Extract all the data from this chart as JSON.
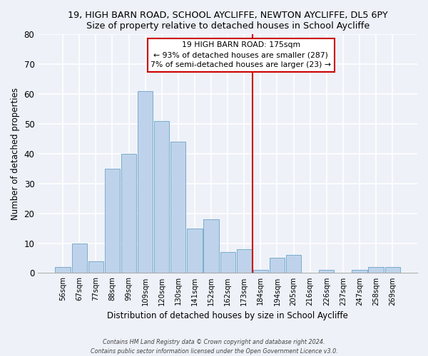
{
  "title": "19, HIGH BARN ROAD, SCHOOL AYCLIFFE, NEWTON AYCLIFFE, DL5 6PY",
  "subtitle": "Size of property relative to detached houses in School Aycliffe",
  "xlabel": "Distribution of detached houses by size in School Aycliffe",
  "ylabel": "Number of detached properties",
  "bar_labels": [
    "56sqm",
    "67sqm",
    "77sqm",
    "88sqm",
    "99sqm",
    "109sqm",
    "120sqm",
    "130sqm",
    "141sqm",
    "152sqm",
    "162sqm",
    "173sqm",
    "184sqm",
    "194sqm",
    "205sqm",
    "216sqm",
    "226sqm",
    "237sqm",
    "247sqm",
    "258sqm",
    "269sqm"
  ],
  "bar_heights": [
    2,
    10,
    4,
    35,
    40,
    61,
    51,
    44,
    15,
    18,
    7,
    8,
    1,
    5,
    6,
    0,
    1,
    0,
    1,
    2,
    2
  ],
  "bar_color": "#bed3eb",
  "bar_edge_color": "#7aaccc",
  "ylim": [
    0,
    80
  ],
  "yticks": [
    0,
    10,
    20,
    30,
    40,
    50,
    60,
    70,
    80
  ],
  "vline_color": "#cc0000",
  "annotation_title": "19 HIGH BARN ROAD: 175sqm",
  "annotation_line1": "← 93% of detached houses are smaller (287)",
  "annotation_line2": "7% of semi-detached houses are larger (23) →",
  "footer1": "Contains HM Land Registry data © Crown copyright and database right 2024.",
  "footer2": "Contains public sector information licensed under the Open Government Licence v3.0.",
  "background_color": "#eef1f8",
  "grid_color": "#ffffff"
}
